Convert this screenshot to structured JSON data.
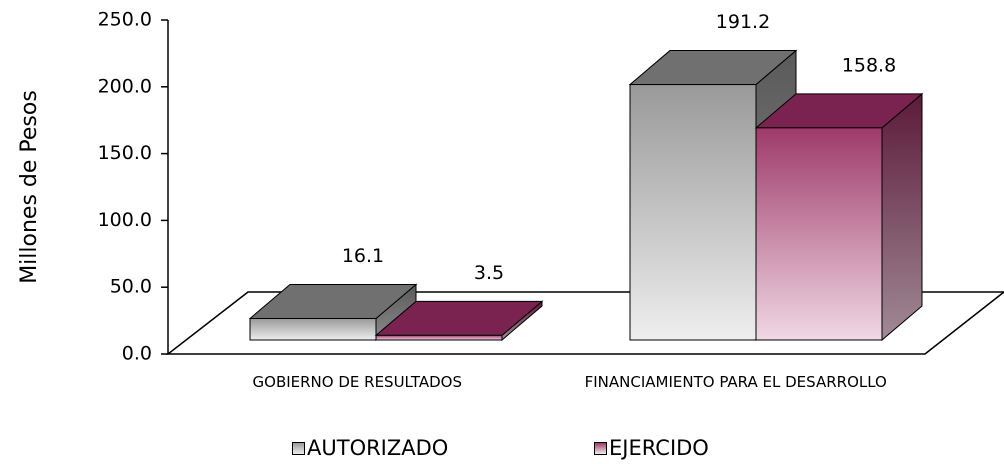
{
  "chart_data": {
    "type": "bar3d",
    "ylabel": "Millones de Pesos",
    "categories": [
      "GOBIERNO DE RESULTADOS",
      "FINANCIAMIENTO PARA EL DESARROLLO"
    ],
    "series": [
      {
        "name": "AUTORIZADO",
        "color": "#999999",
        "values": [
          16.1,
          191.2
        ]
      },
      {
        "name": "EJERCIDO",
        "color": "#9e3a6a",
        "values": [
          3.5,
          158.8
        ]
      }
    ],
    "ylim": [
      0,
      250
    ],
    "yticks": [
      {
        "value": 0,
        "label": "0.0"
      },
      {
        "value": 50,
        "label": "50.0"
      },
      {
        "value": 100,
        "label": "100.0"
      },
      {
        "value": 150,
        "label": "150.0"
      },
      {
        "value": 200,
        "label": "200.0"
      },
      {
        "value": 250,
        "label": "250.0"
      }
    ],
    "legend": "bottom"
  }
}
